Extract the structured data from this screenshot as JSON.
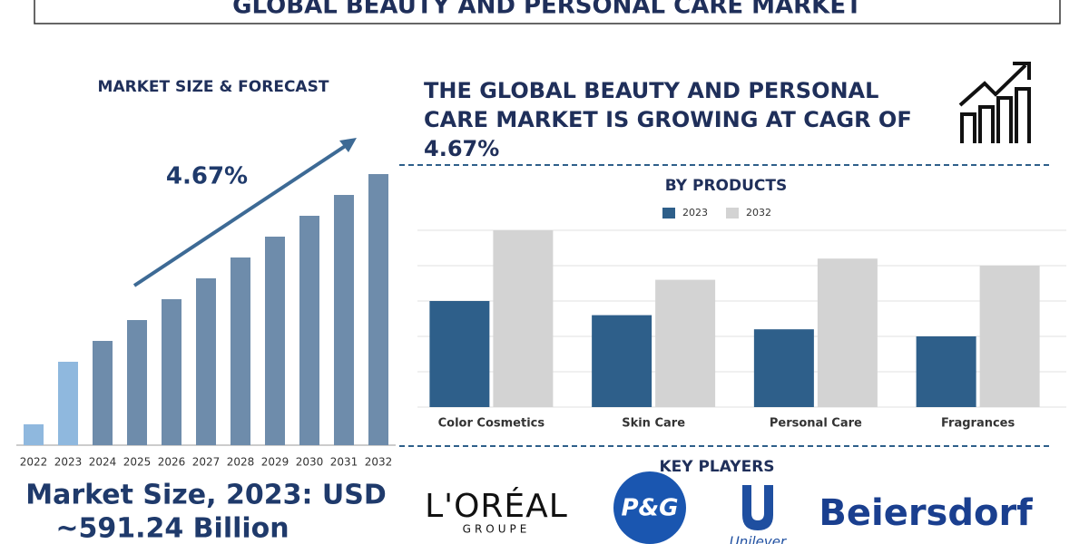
{
  "header": {
    "title": "GLOBAL BEAUTY AND PERSONAL CARE MARKET"
  },
  "chart_data": [
    {
      "type": "bar",
      "title": "MARKET SIZE & FORECAST",
      "categories": [
        "2022",
        "2023",
        "2024",
        "2025",
        "2026",
        "2027",
        "2028",
        "2029",
        "2030",
        "2031",
        "2032"
      ],
      "values": [
        23,
        92,
        115,
        138,
        161,
        184,
        207,
        230,
        253,
        276,
        299
      ],
      "colors": [
        "#8fb8de",
        "#8fb8de",
        "#6e8cab",
        "#6e8cab",
        "#6e8cab",
        "#6e8cab",
        "#6e8cab",
        "#6e8cab",
        "#6e8cab",
        "#6e8cab",
        "#6e8cab"
      ],
      "annotation": "4.67%"
    },
    {
      "type": "bar",
      "title": "BY PRODUCTS",
      "categories": [
        "Color Cosmetics",
        "Skin Care",
        "Personal Care",
        "Fragrances"
      ],
      "series": [
        {
          "name": "2023",
          "color": "#2e5f8a",
          "values": [
            3.0,
            2.6,
            2.2,
            2.0
          ]
        },
        {
          "name": "2032",
          "color": "#d3d3d3",
          "values": [
            5.0,
            3.6,
            4.2,
            4.0
          ]
        }
      ],
      "ylim": [
        0,
        5
      ],
      "yticks": [
        0,
        1,
        2,
        3,
        4,
        5
      ],
      "grid": true,
      "legend": "top"
    }
  ],
  "headline": {
    "lines": [
      "THE GLOBAL BEAUTY AND PERSONAL",
      "CARE MARKET IS GROWING AT CAGR OF",
      "4.67%"
    ]
  },
  "market_size": {
    "lines": [
      "Market Size, 2023: USD",
      "~591.24 Billion"
    ]
  },
  "key_players": {
    "title": "KEY PLAYERS",
    "logos": [
      "L'ORÉAL",
      "GROUPE",
      "P&G",
      "Unilever",
      "Beiersdorf"
    ]
  }
}
